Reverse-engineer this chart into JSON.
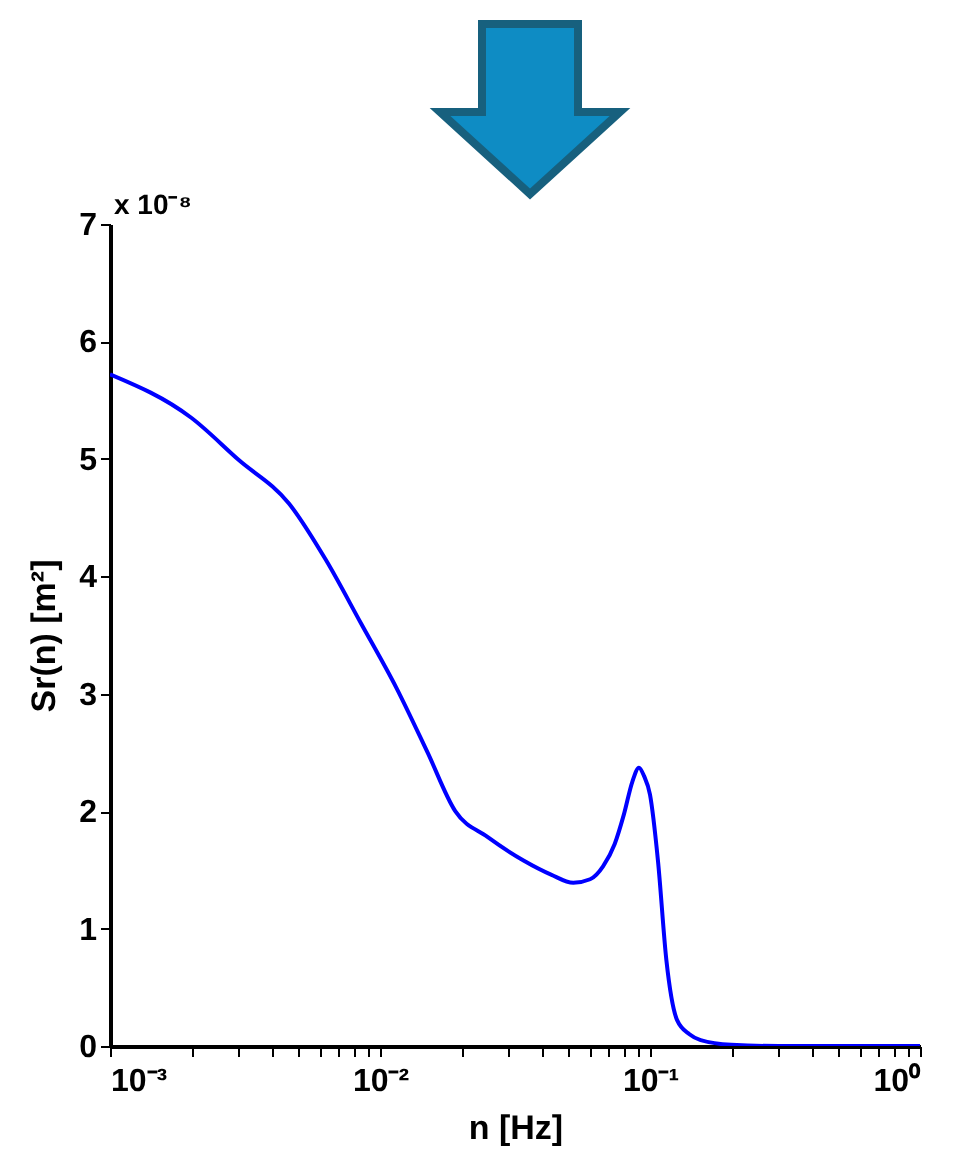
{
  "chart_data": {
    "type": "line",
    "xlabel": "n [Hz]",
    "ylabel": "Sr(n) [m²]",
    "annotations": [
      "x 10⁻⁸"
    ],
    "log": "x",
    "x": [
      0.001,
      0.002,
      0.003,
      0.0046,
      0.0063,
      0.0085,
      0.0115,
      0.015,
      0.019,
      0.025,
      0.034,
      0.043,
      0.052,
      0.06,
      0.067,
      0.074,
      0.08,
      0.086,
      0.091,
      0.095,
      0.1,
      0.107,
      0.115,
      0.126,
      0.14,
      0.154,
      0.2,
      0.3,
      0.5,
      1
    ],
    "series": [
      {
        "color": "#0000ff",
        "values": [
          5.72,
          5.35,
          4.99,
          4.62,
          4.14,
          3.6,
          3.05,
          2.5,
          2.0,
          1.78,
          1.58,
          1.46,
          1.39,
          1.42,
          1.53,
          1.72,
          1.97,
          2.25,
          2.37,
          2.3,
          2.14,
          1.58,
          0.73,
          0.22,
          0.1,
          0.05,
          0.01,
          0,
          0,
          0
        ]
      }
    ],
    "xlim": [
      0.001,
      1
    ],
    "xticks": [
      {
        "value": 0.001,
        "label": "10⁻³"
      },
      {
        "value": 0.002,
        "label": null
      },
      {
        "value": 0.003,
        "label": null
      },
      {
        "value": 0.004,
        "label": null
      },
      {
        "value": 0.005,
        "label": null
      },
      {
        "value": 0.006,
        "label": null
      },
      {
        "value": 0.007,
        "label": null
      },
      {
        "value": 0.008,
        "label": null
      },
      {
        "value": 0.009,
        "label": null
      },
      {
        "value": 0.01,
        "label": "10⁻²"
      },
      {
        "value": 0.02,
        "label": null
      },
      {
        "value": 0.03,
        "label": null
      },
      {
        "value": 0.04,
        "label": null
      },
      {
        "value": 0.05,
        "label": null
      },
      {
        "value": 0.06,
        "label": null
      },
      {
        "value": 0.07,
        "label": null
      },
      {
        "value": 0.08,
        "label": null
      },
      {
        "value": 0.09,
        "label": null
      },
      {
        "value": 0.1,
        "label": "10⁻¹"
      },
      {
        "value": 0.2,
        "label": null
      },
      {
        "value": 0.3,
        "label": null
      },
      {
        "value": 0.4,
        "label": null
      },
      {
        "value": 0.5,
        "label": null
      },
      {
        "value": 0.6,
        "label": null
      },
      {
        "value": 0.7,
        "label": null
      },
      {
        "value": 0.8,
        "label": null
      },
      {
        "value": 0.9,
        "label": null
      },
      {
        "value": 1,
        "label": "10⁰"
      }
    ],
    "ylim": [
      0,
      7
    ],
    "yticks": [
      0,
      1,
      2,
      3,
      4,
      5,
      6,
      7
    ],
    "grid": false,
    "line_style": "solid",
    "marker": "none"
  }
}
